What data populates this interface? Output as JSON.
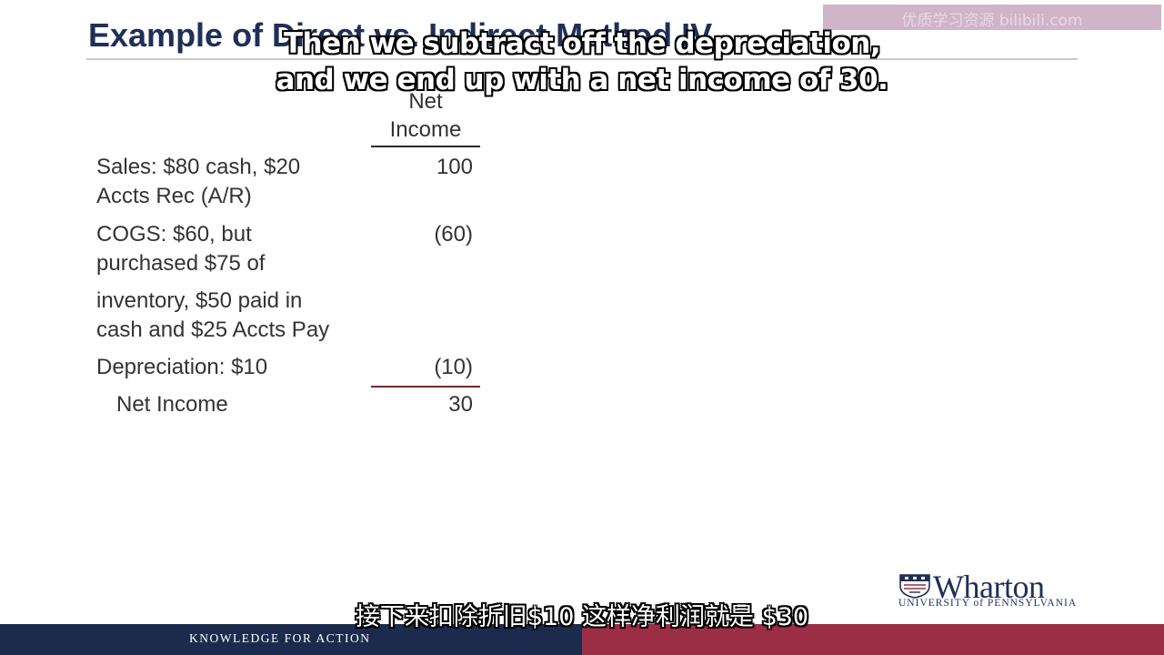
{
  "slide": {
    "title": "Example of Direct vs. Indirect Method IV",
    "watermark": "优质学习资源 bilibili.com",
    "column_header": [
      "Net",
      "Income"
    ],
    "rows": [
      {
        "label_lines": [
          "Sales: $80 cash, $20",
          "Accts Rec (A/R)"
        ],
        "value": "100"
      },
      {
        "label_lines": [
          "COGS: $60, but",
          "purchased $75 of",
          "inventory, $50 paid in",
          "cash and $25 Accts Pay"
        ],
        "value": "(60)"
      },
      {
        "label_lines": [
          "Depreciation: $10"
        ],
        "value": "(10)"
      },
      {
        "label_lines": [
          "Net Income"
        ],
        "value": "30"
      }
    ]
  },
  "captions": {
    "english": [
      "Then we subtract off the depreciation,",
      "and we end up with a net income of 30."
    ],
    "chinese": "接下来扣除折旧$10 这样净利润就是 $30"
  },
  "logo": {
    "name": "Wharton",
    "subtitle": "UNIVERSITY of PENNSYLVANIA"
  },
  "footer": {
    "tagline": "KNOWLEDGE FOR ACTION"
  },
  "colors": {
    "navy": "#1c2b4d",
    "maroon": "#9b2d45",
    "title": "#1f2f57"
  }
}
